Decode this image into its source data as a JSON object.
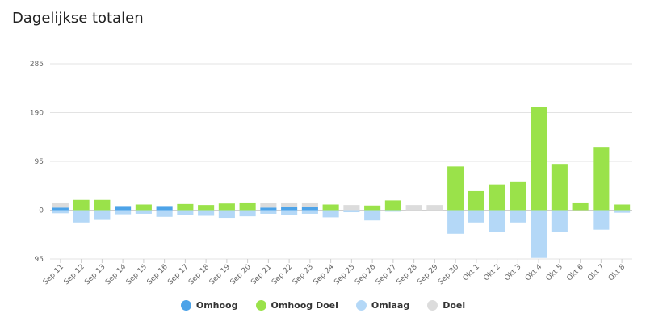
{
  "title": "Dagelijkse totalen",
  "chart_data": {
    "type": "bar",
    "stacked": "diverging",
    "categories": [
      "Sep 11",
      "Sep 12",
      "Sep 13",
      "Sep 14",
      "Sep 15",
      "Sep 16",
      "Sep 17",
      "Sep 18",
      "Sep 19",
      "Sep 20",
      "Sep 21",
      "Sep 22",
      "Sep 23",
      "Sep 24",
      "Sep 25",
      "Sep 26",
      "Sep 27",
      "Sep 28",
      "Sep 29",
      "Sep 30",
      "Okt 1",
      "Okt 2",
      "Okt 3",
      "Okt 4",
      "Okt 5",
      "Okt 6",
      "Okt 7",
      "Okt 8"
    ],
    "series": [
      {
        "name": "Omhoog",
        "color": "#4da3e8",
        "values": [
          5,
          0,
          0,
          8,
          0,
          8,
          0,
          0,
          0,
          0,
          5,
          6,
          6,
          0,
          0,
          0,
          0,
          0,
          0,
          0,
          0,
          0,
          0,
          0,
          0,
          0,
          0,
          0
        ]
      },
      {
        "name": "Omhoog Doel",
        "color": "#9ae24a",
        "values": [
          0,
          20,
          20,
          0,
          11,
          0,
          12,
          10,
          13,
          15,
          0,
          0,
          0,
          11,
          0,
          9,
          19,
          0,
          0,
          85,
          37,
          50,
          56,
          201,
          90,
          15,
          123,
          11
        ]
      },
      {
        "name": "Omlaag",
        "color": "#b4d8f7",
        "values": [
          -6,
          -24,
          -19,
          -8,
          -7,
          -13,
          -9,
          -11,
          -15,
          -12,
          -7,
          -10,
          -7,
          -14,
          -4,
          -20,
          -3,
          0,
          0,
          -46,
          -24,
          -42,
          -24,
          -93,
          -42,
          0,
          -38,
          -5
        ]
      },
      {
        "name": "Doel",
        "color": "#dcdcdc",
        "values": [
          10,
          0,
          0,
          0,
          0,
          0,
          0,
          0,
          0,
          0,
          9,
          9,
          9,
          0,
          10,
          0,
          0,
          10,
          10,
          0,
          0,
          0,
          0,
          0,
          0,
          0,
          0,
          0
        ]
      }
    ],
    "yticks": [
      {
        "value": 285,
        "label": "285"
      },
      {
        "value": 190,
        "label": "190"
      },
      {
        "value": 95,
        "label": "95"
      },
      {
        "value": 0,
        "label": "0"
      },
      {
        "value": -95,
        "label": "95"
      }
    ],
    "ylim": [
      -95,
      285
    ],
    "grid": true,
    "legend": "bottom-center",
    "xlabel": "",
    "ylabel": ""
  },
  "legend": [
    {
      "label": "Omhoog",
      "color": "#4da3e8"
    },
    {
      "label": "Omhoog Doel",
      "color": "#9ae24a"
    },
    {
      "label": "Omlaag",
      "color": "#b4d8f7"
    },
    {
      "label": "Doel",
      "color": "#dcdcdc"
    }
  ]
}
